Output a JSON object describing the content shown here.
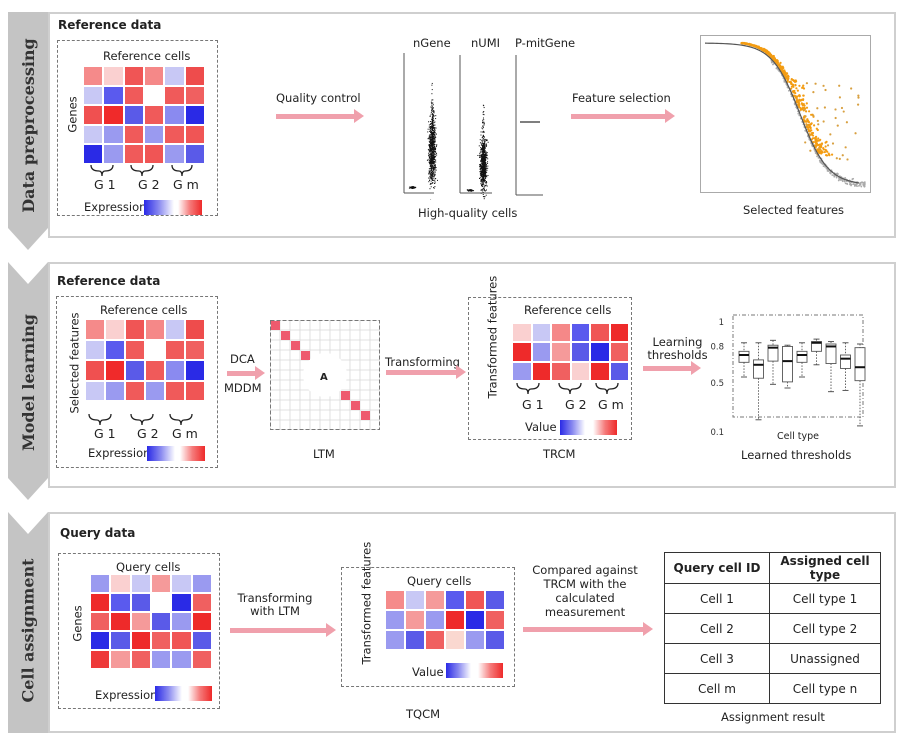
{
  "sections": [
    {
      "label": "Data preprocessing",
      "panel_title": "Reference data",
      "input_heatmap": {
        "title": "Reference cells",
        "row_label": "Genes",
        "groups": [
          "G 1",
          "G 2",
          "G m"
        ],
        "legend_label": "Expression",
        "cells": [
          [
            "#f58a8a",
            "#fad0d0",
            "#f05555",
            "#f58888",
            "#c8c8f5",
            "#ee4c4c"
          ],
          [
            "#c8c8f5",
            "#5a5aee",
            "#f05a5a",
            "#ffffff",
            "#f05a5a",
            "#f06060"
          ],
          [
            "#f05050",
            "#f02a2a",
            "#5a5ae8",
            "#f05a5a",
            "#8a8af0",
            "#2a2ae6"
          ],
          [
            "#c8c8f5",
            "#9a9af0",
            "#f05a5a",
            "#9a9af0",
            "#f05a5a",
            "#f05555"
          ],
          [
            "#2a2ae6",
            "#9a9af0",
            "#f05a5a",
            "#f05555",
            "#9a9af0",
            "#5a5ae8"
          ]
        ]
      },
      "step1_label": "Quality control",
      "qc_plots": {
        "titles": [
          "nGene",
          "nUMI",
          "P-mitGene"
        ],
        "caption": "High-quality cells"
      },
      "step2_label": "Feature selection",
      "feature_plot_caption": "Selected features",
      "colors": {
        "selected": "#f39c12",
        "unselected": "#aaaaaa",
        "curve": "#333333"
      }
    },
    {
      "label": "Model learning",
      "panel_title": "Reference data",
      "input_heatmap": {
        "title": "Reference cells",
        "row_label": "Selected features",
        "groups": [
          "G 1",
          "G 2",
          "G m"
        ],
        "legend_label": "Expression",
        "cells": [
          [
            "#f58a8a",
            "#fad0d0",
            "#f05555",
            "#f58888",
            "#c8c8f5",
            "#ee4c4c"
          ],
          [
            "#c8c8f5",
            "#5a5aee",
            "#f05a5a",
            "#ffffff",
            "#f05a5a",
            "#f06060"
          ],
          [
            "#f05050",
            "#f02a2a",
            "#5a5ae8",
            "#f05a5a",
            "#8a8af0",
            "#2a2ae6"
          ],
          [
            "#c8c8f5",
            "#9a9af0",
            "#f05a5a",
            "#9a9af0",
            "#f05a5a",
            "#f05555"
          ]
        ]
      },
      "step1_labels": [
        "DCA",
        "MDDM"
      ],
      "ltm": {
        "center_label": "A",
        "caption": "LTM"
      },
      "step2_label": "Transforming",
      "trcm": {
        "title": "Reference cells",
        "row_label": "Transformed features",
        "groups": [
          "G 1",
          "G 2",
          "G m"
        ],
        "legend_label": "Value",
        "caption": "TRCM",
        "cells": [
          [
            "#fad0d0",
            "#c8c8f5",
            "#f58888",
            "#5a5aee",
            "#f05555",
            "#ee2a2a"
          ],
          [
            "#ee2a2a",
            "#9a9af0",
            "#f59a9a",
            "#5a5ae8",
            "#2a2ae6",
            "#f06060"
          ],
          [
            "#9a9af0",
            "#ee2a2a",
            "#f06060",
            "#fad0d0",
            "#ee2a2a",
            "#5a5ae8"
          ]
        ]
      },
      "step3_label": "Learning thresholds",
      "thresholds": {
        "xlabel": "Cell type",
        "caption": "Learned thresholds",
        "yticks": [
          "1",
          "0.8",
          "0.5",
          "0.1"
        ],
        "boxes": [
          {
            "min": 0.55,
            "q1": 0.67,
            "median": 0.73,
            "q3": 0.76,
            "max": 0.83
          },
          {
            "min": 0.2,
            "q1": 0.54,
            "median": 0.65,
            "q3": 0.69,
            "max": 0.83
          },
          {
            "min": 0.49,
            "q1": 0.68,
            "median": 0.79,
            "q3": 0.81,
            "max": 0.85
          },
          {
            "min": 0.46,
            "q1": 0.51,
            "median": 0.68,
            "q3": 0.8,
            "max": 0.81
          },
          {
            "min": 0.55,
            "q1": 0.67,
            "median": 0.73,
            "q3": 0.76,
            "max": 0.83
          },
          {
            "min": 0.65,
            "q1": 0.76,
            "median": 0.83,
            "q3": 0.84,
            "max": 0.86
          },
          {
            "min": 0.43,
            "q1": 0.66,
            "median": 0.8,
            "q3": 0.82,
            "max": 0.84
          },
          {
            "min": 0.44,
            "q1": 0.62,
            "median": 0.7,
            "q3": 0.73,
            "max": 0.83
          },
          {
            "min": 0.15,
            "q1": 0.52,
            "median": 0.63,
            "q3": 0.79,
            "max": 0.82
          }
        ]
      }
    },
    {
      "label": "Cell assignment",
      "panel_title": "Query data",
      "input_heatmap": {
        "title": "Query cells",
        "row_label": "Genes",
        "legend_label": "Expression",
        "cells": [
          [
            "#9a9af0",
            "#fad0d0",
            "#c8c8f5",
            "#f59a9a",
            "#c8c8f5",
            "#9a9af0"
          ],
          [
            "#ee2a2a",
            "#5a5aee",
            "#5a5ae8",
            "#ffffff",
            "#2a2ae6",
            "#f06060"
          ],
          [
            "#f06060",
            "#ee2a2a",
            "#f59a9a",
            "#5a5ae8",
            "#9a9af0",
            "#ee2a2a"
          ],
          [
            "#2a2ae6",
            "#5a5ae8",
            "#ee2a2a",
            "#f06060",
            "#f05555",
            "#5a5ae8"
          ],
          [
            "#ee3a3a",
            "#f59a9a",
            "#f06060",
            "#9a9af0",
            "#9a9af0",
            "#f06060"
          ]
        ]
      },
      "step1_label": "Transforming with LTM",
      "tqcm": {
        "title": "Query cells",
        "row_label": "Transformed features",
        "legend_label": "Value",
        "caption": "TQCM",
        "cells": [
          [
            "#f58a8a",
            "#c8c8f5",
            "#f59a9a",
            "#5a5aee",
            "#f05555",
            "#5a5ae8"
          ],
          [
            "#9a9af0",
            "#f59a9a",
            "#9a9af0",
            "#ee2a2a",
            "#2a2ae6",
            "#f06060"
          ],
          [
            "#9a9af0",
            "#5a5ae8",
            "#f06060",
            "#fad8d0",
            "#9a9af0",
            "#5a5ae8"
          ]
        ]
      },
      "step2_label": "Compared against TRCM with the calculated measurement",
      "result_table": {
        "headers": [
          "Query cell ID",
          "Assigned cell type"
        ],
        "rows": [
          [
            "Cell 1",
            "Cell type 1"
          ],
          [
            "Cell 2",
            "Cell type 2"
          ],
          [
            "Cell 3",
            "Unassigned"
          ],
          [
            "Cell m",
            "Cell type n"
          ]
        ],
        "caption": "Assignment result"
      }
    }
  ],
  "colors": {
    "arrow": "#f0a0ac",
    "sidebar": "#c4c4c4",
    "blue": "#2a2ae6",
    "red": "#ee2a2a"
  }
}
